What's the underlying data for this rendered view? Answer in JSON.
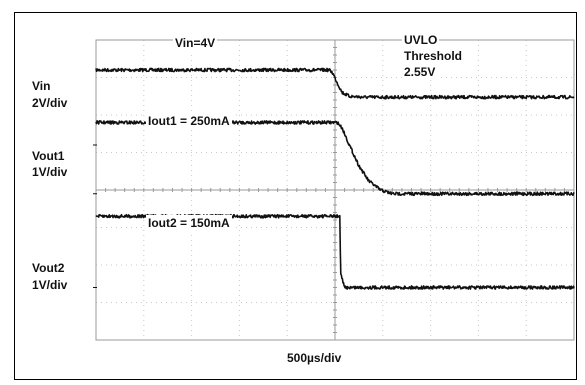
{
  "chart_data": {
    "type": "line",
    "title": "",
    "xlabel": "500µs/div",
    "x_divisions": 10,
    "y_divisions": 8,
    "grid": true,
    "channels": [
      {
        "name": "Vin",
        "scale": "2V/div",
        "ground_div": 5.2
      },
      {
        "name": "Vout1",
        "scale": "1V/div",
        "ground_div": 3.9
      },
      {
        "name": "Vout2",
        "scale": "1V/div",
        "ground_div": 1.4
      }
    ],
    "series": [
      {
        "name": "Vin",
        "unit": "V",
        "x": [
          0,
          4.88,
          4.95,
          5.05,
          5.15,
          5.3,
          5.6,
          6.0,
          10
        ],
        "y": [
          4.0,
          4.0,
          3.85,
          3.3,
          2.8,
          2.6,
          2.55,
          2.55,
          2.55
        ]
      },
      {
        "name": "Vout1",
        "unit": "V",
        "x": [
          0,
          5.05,
          5.15,
          5.3,
          5.5,
          5.7,
          5.95,
          6.2,
          10
        ],
        "y": [
          1.9,
          1.9,
          1.75,
          1.3,
          0.75,
          0.35,
          0.1,
          0.0,
          0.0
        ]
      },
      {
        "name": "Vout2",
        "unit": "V",
        "x": [
          0,
          5.1,
          5.12,
          5.2,
          10
        ],
        "y": [
          1.9,
          1.9,
          0.35,
          0.0,
          0.0
        ]
      }
    ],
    "annotations": {
      "vin_label": "Vin=4V",
      "uvlo_line1": "UVLO",
      "uvlo_line2": "Threshold",
      "uvlo_line3": "2.55V",
      "iout1": "Iout1 = 250mA",
      "iout2": "Iout2 = 150mA"
    }
  },
  "labels": {
    "vin_name": "Vin",
    "vin_scale": "2V/div",
    "vout1_name": "Vout1",
    "vout1_scale": "1V/div",
    "vout2_name": "Vout2",
    "vout2_scale": "1V/div",
    "timebase": "500µs/div"
  },
  "colors": {
    "trace": "#111111",
    "grid": "#c8c8c8",
    "axis": "#9a9a9a"
  }
}
